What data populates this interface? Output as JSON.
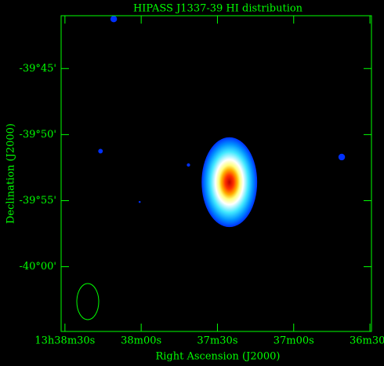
{
  "chart_data": {
    "type": "image",
    "title": "HIPASS J1337-39  HI distribution",
    "x_label": "Right Ascension (J2000)",
    "y_label": "Declination (J2000)",
    "color": "#00ff00",
    "xlim": [
      2311.5,
      2189.4
    ],
    "xticks": [
      {
        "value": 2310,
        "label": "13h38m30s"
      },
      {
        "value": 2280,
        "label": "38m00s"
      },
      {
        "value": 2250,
        "label": "37m30s"
      },
      {
        "value": 2220,
        "label": "37m00s"
      },
      {
        "value": 2190,
        "label": "36m30s"
      }
    ],
    "ylim": [
      -2404.9,
      -2381.0
    ],
    "yticks": [
      {
        "value": -2385,
        "label": "-39°45'"
      },
      {
        "value": -2390,
        "label": "-39°50'"
      },
      {
        "value": -2395,
        "label": "-39°55'"
      },
      {
        "value": -2400,
        "label": "-40°00'"
      }
    ],
    "sources": {
      "x": [
        2245.3,
        2290.8,
        2296.0,
        2261.4,
        2280.6,
        2201.1
      ],
      "y": [
        -2393.6,
        -2381.25,
        -2391.25,
        -2392.3,
        -2395.1,
        -2391.7
      ],
      "size": [
        6.8,
        0.5,
        0.35,
        0.25,
        0.15,
        0.5
      ]
    }
  }
}
